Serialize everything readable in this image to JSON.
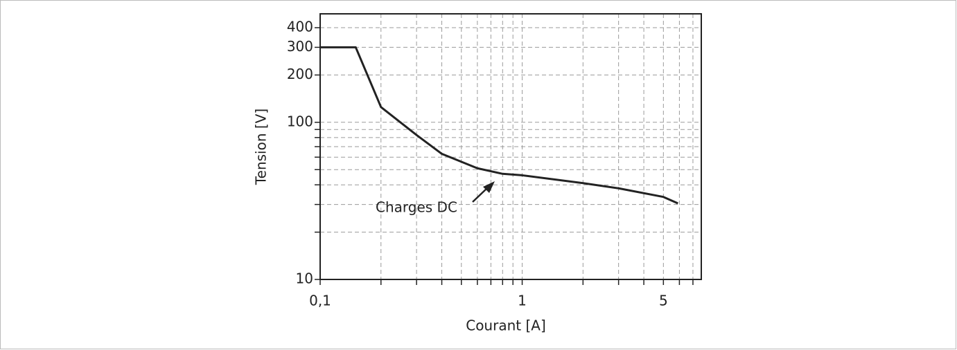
{
  "chart_data": {
    "type": "line",
    "xlabel": "Courant [A]",
    "ylabel": "Tension [V]",
    "annotation": "Charges DC",
    "x": [
      0.1,
      0.15,
      0.2,
      0.3,
      0.4,
      0.6,
      0.8,
      1,
      2,
      3,
      5,
      5.9
    ],
    "series": [
      {
        "name": "Charges DC",
        "color": "#222222",
        "values": [
          300,
          300,
          125,
          83,
          63,
          51,
          47,
          46,
          41,
          38,
          33.5,
          30.5
        ]
      }
    ],
    "xscale": "log",
    "yscale": "log",
    "xlim": [
      0.1,
      7.7
    ],
    "ylim": [
      10,
      490
    ],
    "xticks": [
      {
        "value": 0.1,
        "label": "0,1"
      },
      1,
      5
    ],
    "yticks": [
      10,
      100,
      200,
      300,
      400
    ],
    "minor_xticks": [
      0.2,
      0.3,
      0.4,
      0.5,
      0.6,
      0.7,
      0.8,
      0.9,
      2,
      3,
      4,
      6,
      7
    ],
    "minor_yticks": [
      20,
      30,
      40,
      50,
      60,
      70,
      80,
      90
    ],
    "grid": true
  }
}
